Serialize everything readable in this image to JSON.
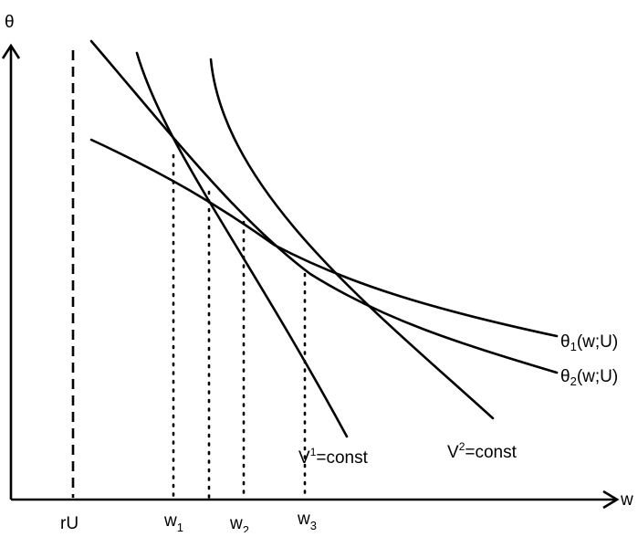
{
  "axes": {
    "y_label": "θ",
    "x_label": "w"
  },
  "markers": {
    "reservation": "rU",
    "w1": {
      "base": "w",
      "sub": "1"
    },
    "w2": {
      "base": "w",
      "sub": "2"
    },
    "w3": {
      "base": "w",
      "sub": "3"
    }
  },
  "curves": {
    "theta1": {
      "prefix": "θ",
      "sub": "1",
      "suffix": "(w;U)"
    },
    "theta2": {
      "prefix": "θ",
      "sub": "2",
      "suffix": "(w;U)"
    },
    "v1": {
      "base": "V",
      "sup": "1",
      "suffix": "=const"
    },
    "v2": {
      "base": "V",
      "sup": "2",
      "suffix": "=const"
    }
  }
}
